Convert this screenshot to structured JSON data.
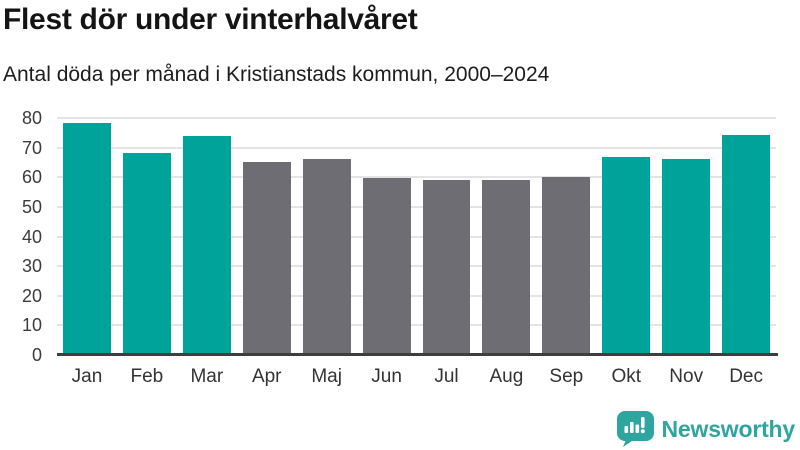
{
  "header": {
    "title": "Flest dör under vinterhalvåret",
    "subtitle": "Antal döda per månad i Kristianstads kommun, 2000–2024"
  },
  "chart_data": {
    "type": "bar",
    "title": "Flest dör under vinterhalvåret",
    "subtitle": "Antal döda per månad i Kristianstads kommun, 2000–2024",
    "categories": [
      "Jan",
      "Feb",
      "Mar",
      "Apr",
      "Maj",
      "Jun",
      "Jul",
      "Aug",
      "Sep",
      "Okt",
      "Nov",
      "Dec"
    ],
    "values": [
      78.2,
      68.2,
      73.8,
      65.1,
      66.0,
      59.7,
      59.0,
      59.0,
      60.1,
      67.0,
      66.3,
      74.4
    ],
    "bar_groups": [
      "winter",
      "winter",
      "winter",
      "summer",
      "summer",
      "summer",
      "summer",
      "summer",
      "summer",
      "winter",
      "winter",
      "winter"
    ],
    "palette": {
      "winter": "#00a39a",
      "summer": "#6d6d73"
    },
    "ylim": [
      0,
      80
    ],
    "yticks": [
      0,
      10,
      20,
      30,
      40,
      50,
      60,
      70,
      80
    ],
    "xlabel": "",
    "ylabel": "",
    "grid": true,
    "legend": false,
    "gridline_color": "#e4e4e4",
    "axis_line_color": "#3e3e3e"
  },
  "footer": {
    "brand": "Newsworthy",
    "logo_icon": "newsworthy-speech-bubble-bar-chart-icon",
    "brand_color": "#2ea59e"
  }
}
